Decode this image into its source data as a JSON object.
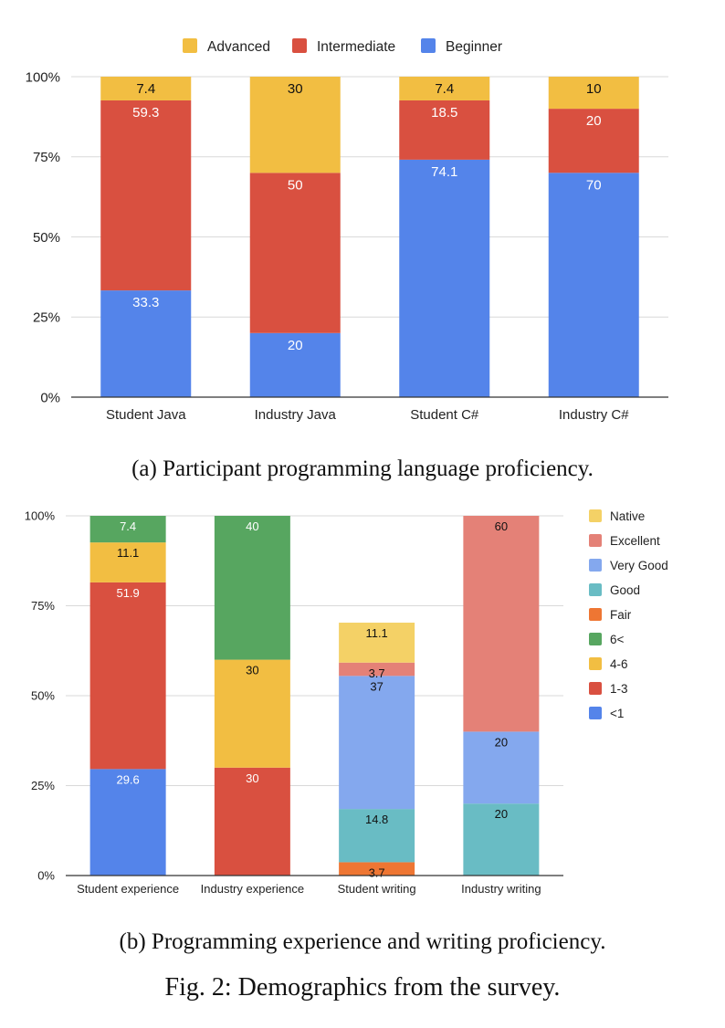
{
  "captions": {
    "a": "(a) Participant programming language proficiency.",
    "b": "(b) Programming experience and writing proficiency.",
    "figure": "Fig. 2: Demographics from the survey."
  },
  "chart_data": [
    {
      "id": "a",
      "type": "bar",
      "stacked": true,
      "title": "",
      "xlabel": "",
      "ylabel": "",
      "ylim": [
        0,
        100
      ],
      "yticks": [
        "0%",
        "25%",
        "50%",
        "75%",
        "100%"
      ],
      "grid": true,
      "legend_position": "top",
      "categories": [
        "Student Java",
        "Industry Java",
        "Student C#",
        "Industry C#"
      ],
      "legend_order": [
        "Advanced",
        "Intermediate",
        "Beginner"
      ],
      "series": [
        {
          "name": "Beginner",
          "color": "#5484EA",
          "label_color": "#ffffff",
          "values": [
            33.3,
            20,
            74.1,
            70
          ]
        },
        {
          "name": "Intermediate",
          "color": "#D95040",
          "label_color": "#ffffff",
          "values": [
            59.3,
            50,
            18.5,
            20
          ]
        },
        {
          "name": "Advanced",
          "color": "#F2BE42",
          "label_color": "#111111",
          "values": [
            7.4,
            30,
            7.4,
            10
          ]
        }
      ]
    },
    {
      "id": "b",
      "type": "bar",
      "stacked": true,
      "title": "",
      "xlabel": "",
      "ylabel": "",
      "ylim": [
        0,
        100
      ],
      "yticks": [
        "0%",
        "25%",
        "50%",
        "75%",
        "100%"
      ],
      "grid": true,
      "legend_position": "right",
      "categories": [
        "Student experience",
        "Industry experience",
        "Student writing",
        "Industry writing"
      ],
      "legend_order": [
        "Native",
        "Excellent",
        "Very Good",
        "Good",
        "Fair",
        "6<",
        "4-6",
        "1-3",
        "<1"
      ],
      "series": [
        {
          "name": "<1",
          "color": "#5484EA",
          "label_color": "#ffffff",
          "values": [
            29.6,
            0,
            0,
            0
          ]
        },
        {
          "name": "1-3",
          "color": "#D95040",
          "label_color": "#ffffff",
          "values": [
            51.9,
            30,
            0,
            0
          ]
        },
        {
          "name": "4-6",
          "color": "#F2BE42",
          "label_color": "#111111",
          "values": [
            11.1,
            30,
            0,
            0
          ]
        },
        {
          "name": "6<",
          "color": "#57A660",
          "label_color": "#ffffff",
          "values": [
            7.4,
            40,
            0,
            0
          ]
        },
        {
          "name": "Fair",
          "color": "#EE7633",
          "label_color": "#111111",
          "values": [
            0,
            0,
            3.7,
            0
          ]
        },
        {
          "name": "Good",
          "color": "#69BCC4",
          "label_color": "#111111",
          "values": [
            0,
            0,
            14.8,
            20
          ]
        },
        {
          "name": "Very Good",
          "color": "#84A8EE",
          "label_color": "#111111",
          "values": [
            0,
            0,
            37,
            20
          ]
        },
        {
          "name": "Excellent",
          "color": "#E48177",
          "label_color": "#111111",
          "values": [
            0,
            0,
            3.7,
            60
          ]
        },
        {
          "name": "Native",
          "color": "#F4D166",
          "label_color": "#111111",
          "values": [
            0,
            0,
            11.1,
            0
          ]
        }
      ]
    }
  ]
}
